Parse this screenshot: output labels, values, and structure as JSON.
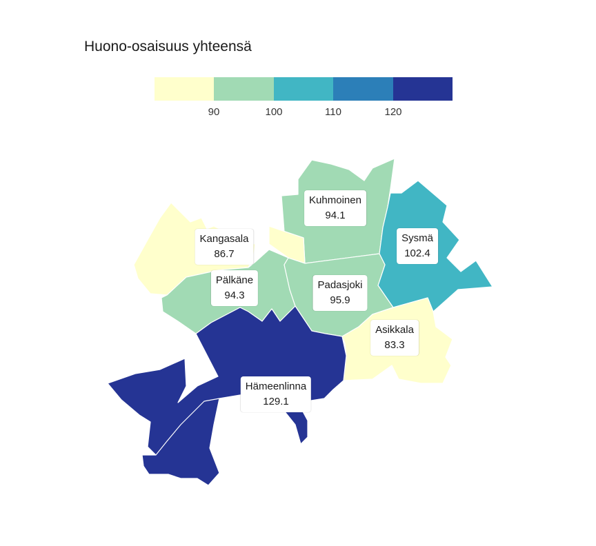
{
  "title": "Huono-osaisuus yhteensä",
  "legend": {
    "colors": [
      "#ffffcc",
      "#a1dab4",
      "#41b6c4",
      "#2c7fb8",
      "#253494"
    ],
    "ticks": [
      "90",
      "100",
      "110",
      "120"
    ]
  },
  "regions": [
    {
      "name": "Kuhmoinen",
      "value": "94.1",
      "color": "#a1dab4"
    },
    {
      "name": "Sysmä",
      "value": "102.4",
      "color": "#41b6c4"
    },
    {
      "name": "Kangasala",
      "value": "86.7",
      "color": "#ffffcc"
    },
    {
      "name": "Pälkäne",
      "value": "94.3",
      "color": "#a1dab4"
    },
    {
      "name": "Padasjoki",
      "value": "95.9",
      "color": "#a1dab4"
    },
    {
      "name": "Asikkala",
      "value": "83.3",
      "color": "#ffffcc"
    },
    {
      "name": "Hämeenlinna",
      "value": "129.1",
      "color": "#253494"
    }
  ]
}
